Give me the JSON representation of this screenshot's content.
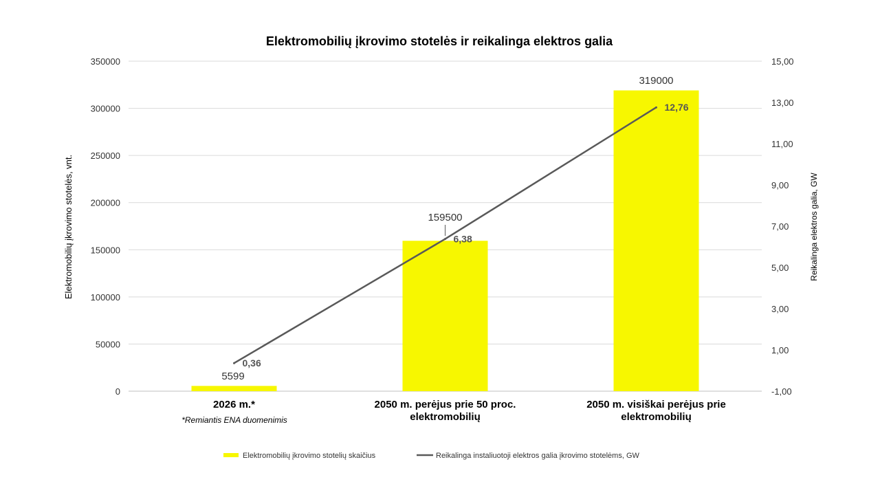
{
  "chart_data": {
    "type": "bar",
    "title": "Elektromobilių įkrovimo stotelės ir reikalinga elektros galia",
    "categories": [
      [
        "2026 m.*"
      ],
      [
        "2050 m. perėjus prie 50 proc.",
        "elektromobilių"
      ],
      [
        "2050 m. visiškai perėjus prie",
        "elektromobilių"
      ]
    ],
    "category_note": "*Remiantis ENA duomenimis",
    "ylabel_left": "Elektromobilių įkrovimo stotelės, vnt.",
    "ylabel_right": "Reikalinga elektros galia, GW",
    "ylim_left": [
      0,
      350000
    ],
    "ylim_right": [
      -1,
      15
    ],
    "yticks_left": [
      "0",
      "50000",
      "100000",
      "150000",
      "200000",
      "250000",
      "300000",
      "350000"
    ],
    "yticks_right": [
      "-1,00",
      "1,00",
      "3,00",
      "5,00",
      "7,00",
      "9,00",
      "11,00",
      "13,00",
      "15,00"
    ],
    "grid": true,
    "legend_position": "bottom",
    "series": [
      {
        "name": "Elektromobilių įkrovimo stotelių skaičius",
        "type": "bar",
        "axis": "left",
        "color": "#f7f700",
        "values": [
          5599,
          159500,
          319000
        ],
        "labels": [
          "5599",
          "159500",
          "319000"
        ]
      },
      {
        "name": "Reikalinga instaliuotoji elektros galia įkrovimo stotelėms, GW",
        "type": "line",
        "axis": "right",
        "color": "#595959",
        "values": [
          0.36,
          6.38,
          12.76
        ],
        "labels": [
          "0,36",
          "6,38",
          "12,76"
        ]
      }
    ]
  }
}
